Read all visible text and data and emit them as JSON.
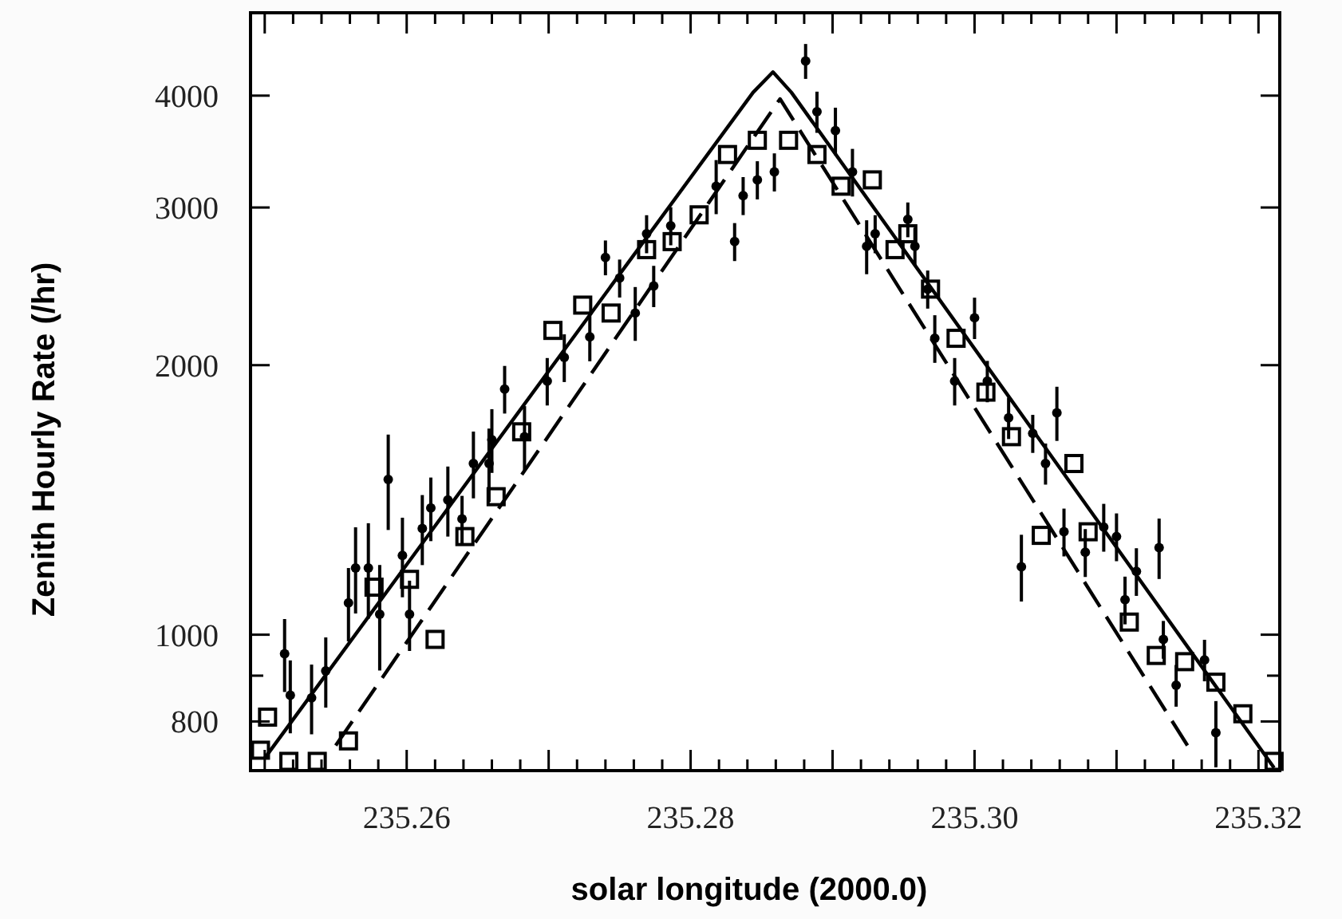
{
  "chart_data": {
    "type": "scatter",
    "xlabel": "solar longitude  (2000.0)",
    "ylabel": "Zenith Hourly Rate  (/hr)",
    "log": "y",
    "grid": false,
    "xlim": [
      235.249,
      235.3215
    ],
    "ylim": [
      705,
      4950
    ],
    "xticks": [
      {
        "value": 235.25,
        "label": null
      },
      {
        "value": 235.252,
        "label": null
      },
      {
        "value": 235.254,
        "label": null
      },
      {
        "value": 235.256,
        "label": null
      },
      {
        "value": 235.258,
        "label": null
      },
      235.26,
      {
        "value": 235.262,
        "label": null
      },
      {
        "value": 235.264,
        "label": null
      },
      {
        "value": 235.266,
        "label": null
      },
      {
        "value": 235.268,
        "label": null
      },
      {
        "value": 235.27,
        "label": null
      },
      {
        "value": 235.272,
        "label": null
      },
      {
        "value": 235.274,
        "label": null
      },
      {
        "value": 235.276,
        "label": null
      },
      {
        "value": 235.278,
        "label": null
      },
      235.28,
      {
        "value": 235.282,
        "label": null
      },
      {
        "value": 235.284,
        "label": null
      },
      {
        "value": 235.286,
        "label": null
      },
      {
        "value": 235.288,
        "label": null
      },
      {
        "value": 235.29,
        "label": null
      },
      {
        "value": 235.292,
        "label": null
      },
      {
        "value": 235.294,
        "label": null
      },
      {
        "value": 235.296,
        "label": null
      },
      {
        "value": 235.298,
        "label": null
      },
      {
        "value": 235.3,
        "label": "235.30"
      },
      {
        "value": 235.302,
        "label": null
      },
      {
        "value": 235.304,
        "label": null
      },
      {
        "value": 235.306,
        "label": null
      },
      {
        "value": 235.308,
        "label": null
      },
      {
        "value": 235.31,
        "label": null
      },
      {
        "value": 235.312,
        "label": null
      },
      {
        "value": 235.314,
        "label": null
      },
      {
        "value": 235.316,
        "label": null
      },
      {
        "value": 235.318,
        "label": null
      },
      235.32
    ],
    "yticks": [
      800,
      {
        "value": 900,
        "label": null
      },
      1000,
      2000,
      3000,
      4000
    ],
    "series": [
      {
        "marker": "circle",
        "color": "#000000",
        "x": [
          235.2514,
          235.2518,
          235.2533,
          235.2543,
          235.2559,
          235.2564,
          235.2573,
          235.2587,
          235.2581,
          235.2597,
          235.2602,
          235.2611,
          235.2617,
          235.2629,
          235.2639,
          235.2647,
          235.2658,
          235.266,
          235.2669,
          235.2683,
          235.2699,
          235.2711,
          235.2729,
          235.274,
          235.275,
          235.2761,
          235.2769,
          235.2774,
          235.2786,
          235.2818,
          235.2831,
          235.2837,
          235.2847,
          235.2859,
          235.2881,
          235.2889,
          235.2902,
          235.2914,
          235.2924,
          235.293,
          235.2953,
          235.2958,
          235.2967,
          235.2972,
          235.2986,
          235.3,
          235.3009,
          235.3024,
          235.3041,
          235.3058,
          235.305,
          235.3033,
          235.3063,
          235.3078,
          235.3091,
          235.31,
          235.3106,
          235.3114,
          235.313,
          235.3133,
          235.3142,
          235.3162,
          235.317
        ],
        "values": [
          952,
          856,
          850,
          911,
          1085,
          1187,
          1187,
          1491,
          1054,
          1226,
          1054,
          1314,
          1385,
          1414,
          1347,
          1553,
          1553,
          1651,
          1881,
          1664,
          1920,
          2040,
          2151,
          2638,
          2502,
          2287,
          2804,
          2452,
          2862,
          3169,
          2748,
          3093,
          3221,
          3287,
          4372,
          3838,
          3655,
          3287,
          2715,
          2804,
          2909,
          2715,
          2432,
          2143,
          1920,
          2259,
          1920,
          1747,
          1678,
          1769,
          1553,
          1191,
          1303,
          1236,
          1319,
          1287,
          1094,
          1177,
          1251,
          988,
          878,
          937,
          777
        ],
        "errors": [
          89,
          80,
          76,
          82,
          102,
          131,
          145,
          182,
          142,
          125,
          95,
          118,
          113,
          127,
          82,
          133,
          146,
          135,
          115,
          136,
          117,
          125,
          131,
          118,
          122,
          158,
          137,
          130,
          140,
          220,
          134,
          151,
          158,
          161,
          196,
          203,
          223,
          201,
          188,
          137,
          130,
          133,
          119,
          131,
          117,
          120,
          102,
          93,
          82,
          123,
          82,
          102,
          80,
          76,
          81,
          79,
          67,
          72,
          97,
          48,
          47,
          50,
          66
        ]
      },
      {
        "marker": "square",
        "color": "#000000",
        "x": [
          235.2497,
          235.2502,
          235.2517,
          235.2537,
          235.2559,
          235.2577,
          235.2602,
          235.262,
          235.2641,
          235.2663,
          235.2681,
          235.2703,
          235.2724,
          235.2744,
          235.2769,
          235.2787,
          235.2806,
          235.2826,
          235.2847,
          235.2869,
          235.2889,
          235.2906,
          235.2928,
          235.2944,
          235.2953,
          235.2969,
          235.2987,
          235.3008,
          235.3026,
          235.307,
          235.3047,
          235.308,
          235.3109,
          235.3128,
          235.3148,
          235.317,
          235.3189,
          235.3211
        ],
        "values": [
          743,
          809,
          722,
          722,
          761,
          1130,
          1153,
          988,
          1287,
          1426,
          1685,
          2187,
          2334,
          2287,
          2692,
          2748,
          2944,
          3438,
          3566,
          3566,
          3438,
          3169,
          3221,
          2692,
          2804,
          2432,
          2143,
          1866,
          1664,
          1553,
          1291,
          1303,
          1033,
          948,
          933,
          885,
          816,
          722
        ]
      },
      {
        "type": "line",
        "line_style": "solid",
        "color": "#000000",
        "x": [
          235.25,
          235.2844,
          235.2858,
          235.2871,
          235.3211
        ],
        "values": [
          728,
          4033,
          4250,
          4033,
          710
        ]
      },
      {
        "type": "line",
        "line_style": "dashed",
        "color": "#000000",
        "x": [
          235.255,
          235.2863,
          235.315
        ],
        "values": [
          752,
          3966,
          752
        ]
      }
    ]
  }
}
